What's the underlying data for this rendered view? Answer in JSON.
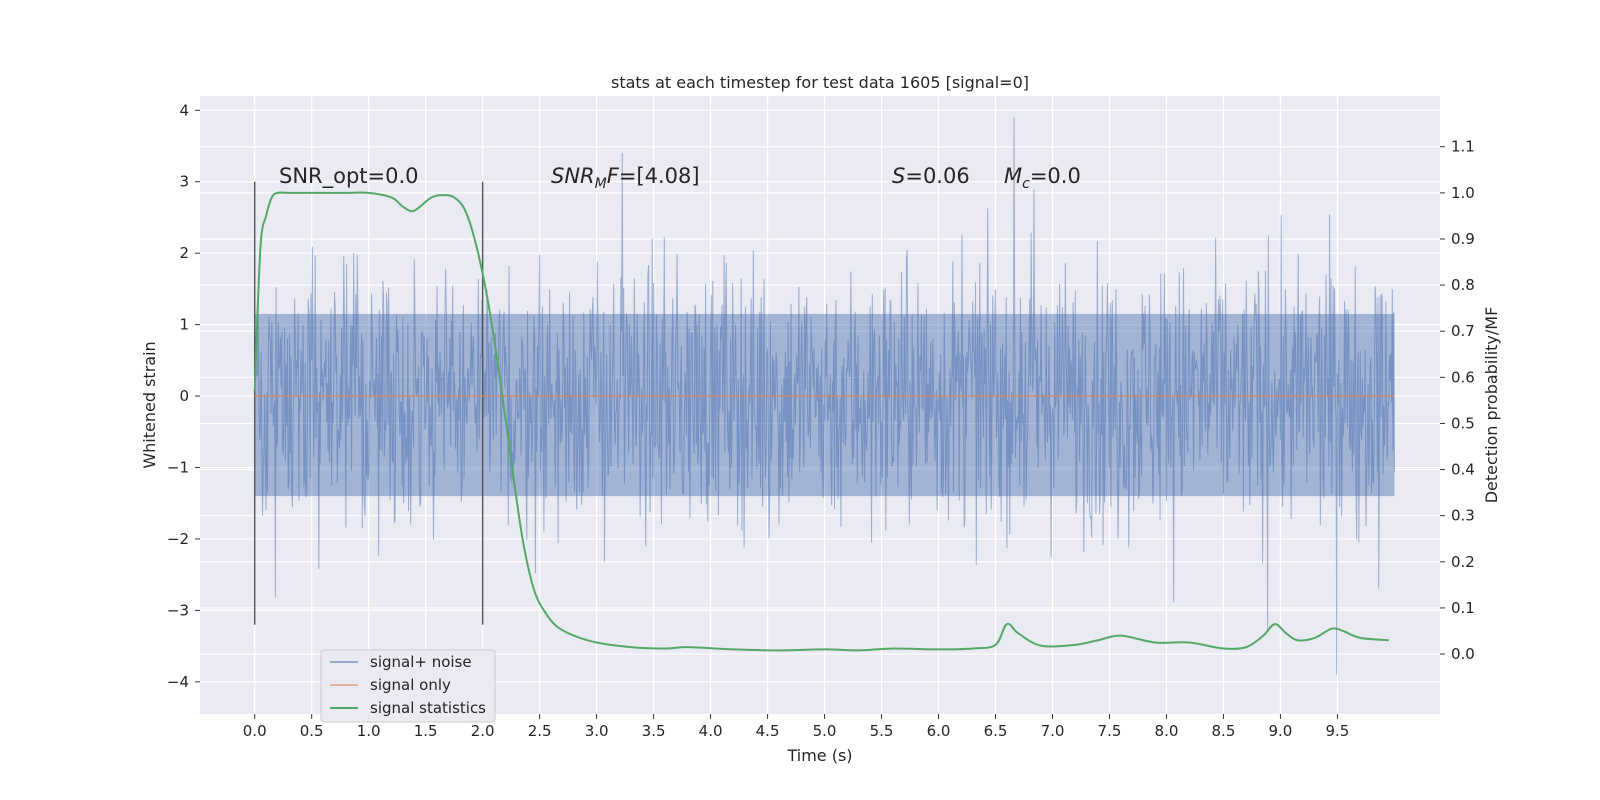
{
  "chart_data": {
    "type": "line",
    "title": "stats at each timestep for test data 1605 [signal=0]",
    "xlabel": "Time (s)",
    "ylabel": "Whitened strain",
    "y2label": "Detection probability/MF",
    "xlim": [
      -0.48,
      10.4
    ],
    "ylim": [
      -4.45,
      4.2
    ],
    "y2lim": [
      -0.13,
      1.21
    ],
    "x_ticks": [
      0.0,
      0.5,
      1.0,
      1.5,
      2.0,
      2.5,
      3.0,
      3.5,
      4.0,
      4.5,
      5.0,
      5.5,
      6.0,
      6.5,
      7.0,
      7.5,
      8.0,
      8.5,
      9.0,
      9.5
    ],
    "x_tick_labels": [
      "0.0",
      "0.5",
      "1.0",
      "1.5",
      "2.0",
      "2.5",
      "3.0",
      "3.5",
      "4.0",
      "4.5",
      "5.0",
      "5.5",
      "6.0",
      "6.5",
      "7.0",
      "7.5",
      "8.0",
      "8.5",
      "9.0",
      "9.5"
    ],
    "y_ticks": [
      4,
      3,
      2,
      1,
      0,
      -1,
      -2,
      -3,
      -4
    ],
    "y_tick_labels": [
      "4",
      "3",
      "2",
      "1",
      "0",
      "−1",
      "−2",
      "−3",
      "−4"
    ],
    "y2_ticks": [
      1.1,
      1.0,
      0.9,
      0.8,
      0.7,
      0.6,
      0.5,
      0.4,
      0.3,
      0.2,
      0.1,
      0.0
    ],
    "y2_tick_labels": [
      "1.1",
      "1.0",
      "0.9",
      "0.8",
      "0.7",
      "0.6",
      "0.5",
      "0.4",
      "0.3",
      "0.2",
      "0.1",
      "0.0"
    ],
    "grid": true,
    "legend_position": "lower-left",
    "annotations": {
      "snr_opt": "SNR_opt=0.0",
      "snr_mf_name": "SNR",
      "snr_mf_sub": "M",
      "snr_mf_tail": "F",
      "snr_mf_value": "=[4.08]",
      "s_name": "S",
      "s_value": "=0.06",
      "mc_name": "M",
      "mc_sub": "c",
      "mc_value": "=0.0"
    },
    "vertical_markers": [
      0.0,
      2.0
    ],
    "series": [
      {
        "name": "signal+ noise",
        "color": "#4c72b0",
        "axis": "left",
        "x_range": [
          0.0,
          10.0
        ],
        "note": "dense whitened noise, approx. ±1.7 typical envelope, peaks to about ±3.8"
      },
      {
        "name": "signal only",
        "color": "#dd8452",
        "axis": "left",
        "x": [
          0.0,
          10.0
        ],
        "y": [
          0.0,
          0.0
        ]
      },
      {
        "name": "signal statistics",
        "color": "#55a868",
        "axis": "right",
        "x": [
          0.0,
          0.05,
          0.1,
          0.15,
          0.2,
          0.3,
          0.5,
          0.8,
          1.0,
          1.2,
          1.3,
          1.38,
          1.45,
          1.55,
          1.65,
          1.75,
          1.85,
          1.95,
          2.05,
          2.15,
          2.25,
          2.35,
          2.45,
          2.55,
          2.65,
          2.8,
          3.0,
          3.3,
          3.6,
          3.8,
          4.2,
          4.6,
          5.0,
          5.3,
          5.6,
          6.0,
          6.3,
          6.5,
          6.6,
          6.7,
          6.9,
          7.2,
          7.4,
          7.6,
          7.9,
          8.2,
          8.5,
          8.7,
          8.85,
          8.95,
          9.05,
          9.15,
          9.3,
          9.45,
          9.55,
          9.7,
          9.95
        ],
        "y": [
          0.57,
          0.88,
          0.95,
          0.99,
          1.0,
          1.0,
          1.0,
          1.0,
          1.0,
          0.99,
          0.97,
          0.96,
          0.97,
          0.99,
          0.995,
          0.99,
          0.96,
          0.88,
          0.76,
          0.6,
          0.42,
          0.25,
          0.14,
          0.09,
          0.06,
          0.04,
          0.025,
          0.015,
          0.012,
          0.015,
          0.01,
          0.008,
          0.01,
          0.008,
          0.012,
          0.01,
          0.012,
          0.02,
          0.065,
          0.045,
          0.018,
          0.02,
          0.03,
          0.04,
          0.025,
          0.025,
          0.012,
          0.015,
          0.04,
          0.065,
          0.045,
          0.03,
          0.035,
          0.055,
          0.05,
          0.035,
          0.03
        ]
      }
    ]
  }
}
